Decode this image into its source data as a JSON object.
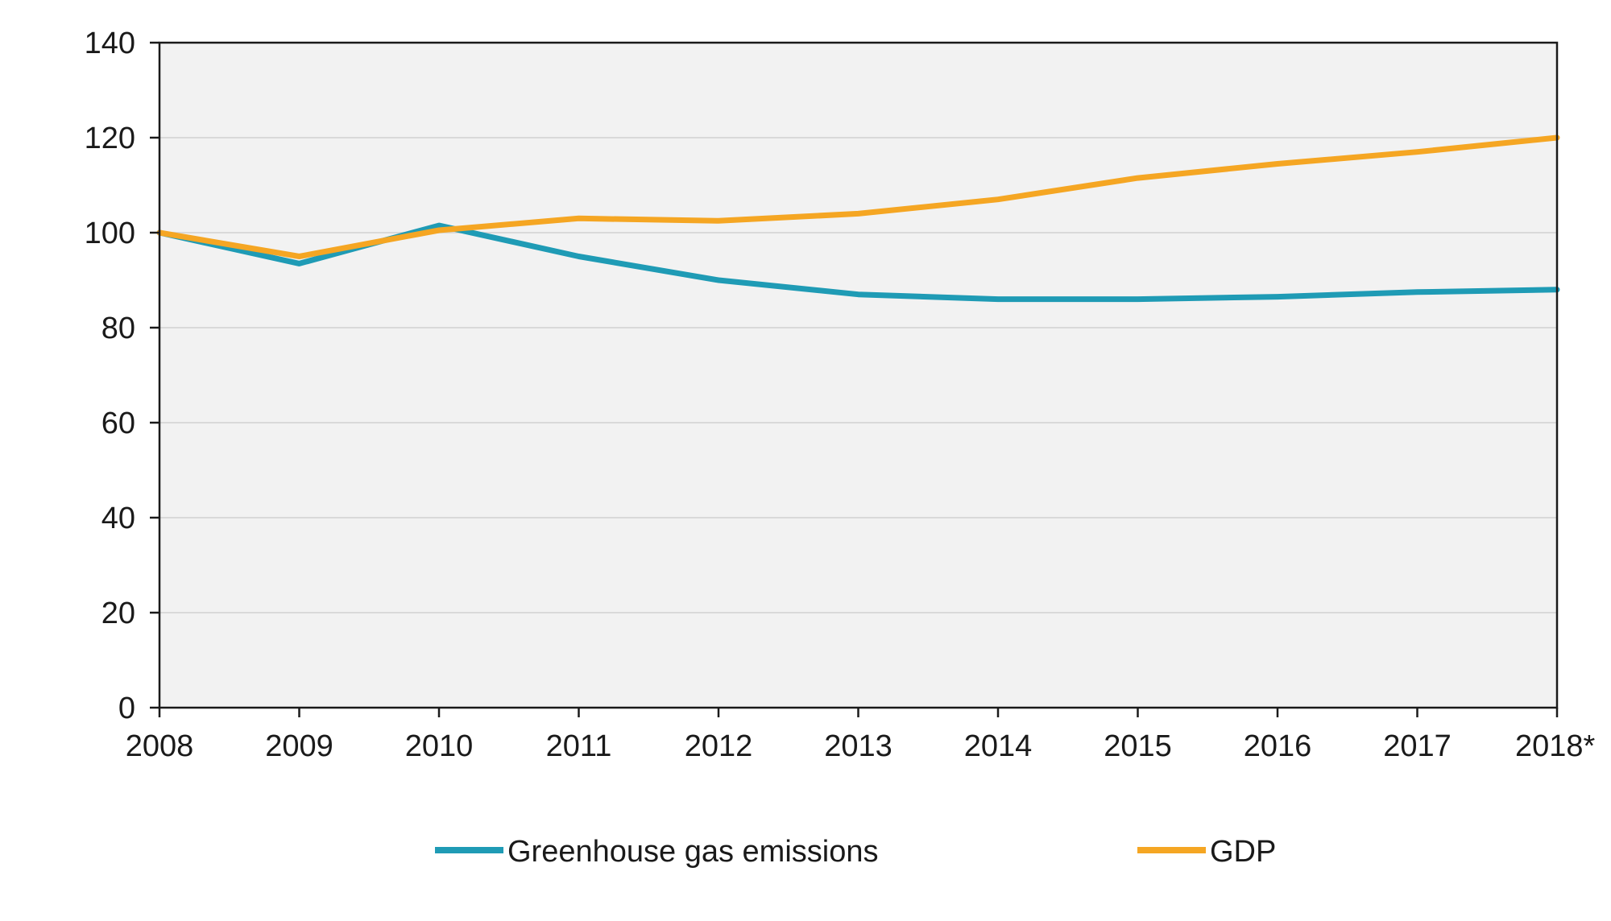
{
  "chart_data": {
    "type": "line",
    "title": "",
    "xlabel": "",
    "ylabel": "",
    "x": [
      "2008",
      "2009",
      "2010",
      "2011",
      "2012",
      "2013",
      "2014",
      "2015",
      "2016",
      "2017",
      "2018*"
    ],
    "yticks": [
      "0",
      "20",
      "40",
      "60",
      "80",
      "100",
      "120",
      "140"
    ],
    "ylim": [
      0,
      140
    ],
    "grid": true,
    "legend_position": "bottom",
    "series": [
      {
        "name": "Greenhouse gas emissions",
        "color": "#1F9BB5",
        "values": [
          100,
          93.5,
          101.5,
          95,
          90,
          87,
          86,
          86,
          86.5,
          87.5,
          88
        ]
      },
      {
        "name": "GDP",
        "color": "#F5A623",
        "values": [
          100,
          95,
          100.5,
          103,
          102.5,
          104,
          107,
          111.5,
          114.5,
          117,
          120
        ]
      }
    ]
  }
}
